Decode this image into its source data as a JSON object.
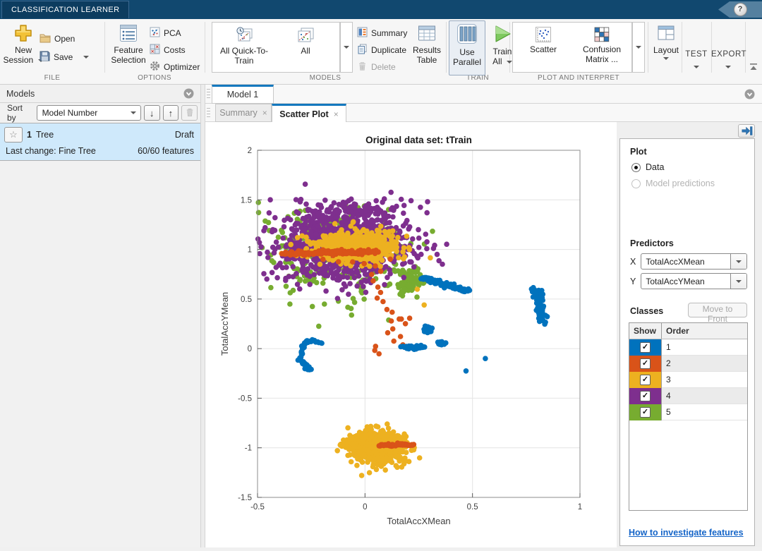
{
  "app": {
    "title_tab": "CLASSIFICATION LEARNER",
    "help_glyph": "?"
  },
  "ribbon": {
    "group_labels": {
      "file": "FILE",
      "options": "OPTIONS",
      "models": "MODELS",
      "train": "TRAIN",
      "plot": "PLOT AND INTERPRET"
    },
    "file": {
      "new_session": "New Session",
      "open": "Open",
      "save": "Save"
    },
    "options": {
      "feature_selection": "Feature Selection",
      "pca": "PCA",
      "costs": "Costs",
      "optimizer": "Optimizer"
    },
    "models": {
      "quick_train": "All Quick-To-Train",
      "all": "All",
      "summary": "Summary",
      "duplicate": "Duplicate",
      "delete": "Delete",
      "results_table": "Results Table"
    },
    "train": {
      "use_parallel": "Use Parallel",
      "train_all": "Train All"
    },
    "plot": {
      "scatter": "Scatter",
      "confusion": "Confusion Matrix",
      "ellipsis": "...",
      "layout": "Layout"
    },
    "test": "TEST",
    "export": "EXPORT"
  },
  "models_panel": {
    "title": "Models",
    "sort_label": "Sort by",
    "sort_value": "Model Number",
    "sort_desc_glyph": "↓",
    "sort_asc_glyph": "↑",
    "model": {
      "number": "1",
      "name": "Tree",
      "status": "Draft",
      "last_change": "Last change: Fine Tree",
      "features": "60/60 features",
      "star_glyph": "☆"
    }
  },
  "doc": {
    "model_tab": "Model 1",
    "tabs": [
      {
        "label": "Summary",
        "close": "×"
      },
      {
        "label": "Scatter Plot",
        "close": "×"
      }
    ]
  },
  "controls": {
    "plot_heading": "Plot",
    "radio_data": "Data",
    "radio_model": "Model predictions",
    "predictors_heading": "Predictors",
    "x_label": "X",
    "x_value": "TotalAccXMean",
    "y_label": "Y",
    "y_value": "TotalAccYMean",
    "classes_heading": "Classes",
    "move_to_front": "Move to Front",
    "col_show": "Show",
    "col_order": "Order",
    "check_glyph": "✓",
    "classes": [
      {
        "order": "1",
        "color": "#0072BD",
        "shown": true
      },
      {
        "order": "2",
        "color": "#D95319",
        "shown": true
      },
      {
        "order": "3",
        "color": "#EDB120",
        "shown": true
      },
      {
        "order": "4",
        "color": "#7E2F8E",
        "shown": true
      },
      {
        "order": "5",
        "color": "#77AC30",
        "shown": true
      }
    ],
    "link": "How to investigate features"
  },
  "chart_data": {
    "type": "scatter",
    "title": "Original data set: tTrain",
    "xlabel": "TotalAccXMean",
    "ylabel": "TotalAccYMean",
    "xlim": [
      -0.5,
      1
    ],
    "ylim": [
      -1.5,
      2
    ],
    "xticks": [
      -0.5,
      0,
      0.5,
      1
    ],
    "yticks": [
      -1.5,
      -1,
      -0.5,
      0,
      0.5,
      1,
      1.5,
      2
    ],
    "grid": true,
    "marker_radius": 3.8,
    "legend_position": "none",
    "class_colors": {
      "1": "#0072BD",
      "2": "#D95319",
      "3": "#EDB120",
      "4": "#7E2F8E",
      "5": "#77AC30"
    },
    "clusters": [
      {
        "kind": "gauss",
        "cls": "5",
        "cx": -0.13,
        "cy": 0.97,
        "sx": 0.16,
        "sy": 0.21,
        "n": 330,
        "seed": 11
      },
      {
        "kind": "gauss",
        "cls": "5",
        "cx": 0.2,
        "cy": 0.7,
        "sx": 0.035,
        "sy": 0.075,
        "n": 70,
        "seed": 12
      },
      {
        "kind": "points",
        "cls": "5",
        "pts": [
          [
            0.255,
            0.685
          ],
          [
            0.27,
            0.66
          ],
          [
            0.235,
            0.715
          ],
          [
            -0.05,
            0.47
          ],
          [
            0.0,
            0.5
          ]
        ],
        "rep": 1,
        "jitter": 0.004,
        "seed": 13
      },
      {
        "kind": "gauss",
        "cls": "4",
        "cx": -0.1,
        "cy": 1.05,
        "sx": 0.15,
        "sy": 0.165,
        "n": 1050,
        "seed": 21
      },
      {
        "kind": "gauss",
        "cls": "4",
        "cx": -0.07,
        "cy": 1.4,
        "sx": 0.12,
        "sy": 0.065,
        "n": 110,
        "seed": 22
      },
      {
        "kind": "points",
        "cls": "4",
        "pts": [
          [
            -0.28,
            1.66
          ],
          [
            0.12,
            1.57
          ],
          [
            -0.33,
            1.5
          ],
          [
            0.05,
            1.5
          ],
          [
            -0.44,
            0.77
          ],
          [
            -0.46,
            0.7
          ]
        ],
        "rep": 1,
        "jitter": 0.005,
        "seed": 23
      },
      {
        "kind": "gauss",
        "cls": "3",
        "cx": -0.05,
        "cy": 1.03,
        "sx": 0.095,
        "sy": 0.075,
        "n": 620,
        "seed": 31
      },
      {
        "kind": "gauss",
        "cls": "3",
        "cx": 0.065,
        "cy": -0.99,
        "sx": 0.06,
        "sy": 0.085,
        "n": 650,
        "seed": 32
      },
      {
        "kind": "gauss",
        "cls": "3",
        "cx": -0.045,
        "cy": -0.96,
        "sx": 0.035,
        "sy": 0.035,
        "n": 140,
        "seed": 33
      },
      {
        "kind": "points",
        "cls": "3",
        "pts": [
          [
            0.24,
            0.6
          ],
          [
            0.275,
            0.44
          ],
          [
            0.305,
            0.92
          ],
          [
            0.02,
            -1.25
          ],
          [
            -0.005,
            -1.28
          ],
          [
            0.05,
            -1.23
          ],
          [
            0.1,
            -1.22
          ]
        ],
        "rep": 1,
        "jitter": 0.005,
        "seed": 34
      },
      {
        "kind": "streak",
        "cls": "2",
        "x1": -0.38,
        "y1": 0.955,
        "x2": 0.05,
        "y2": 0.98,
        "w": 0.013,
        "n": 160,
        "seed": 41
      },
      {
        "kind": "points",
        "cls": "2",
        "pts": [
          [
            -0.05,
            0.88
          ],
          [
            0.0,
            0.86
          ],
          [
            0.06,
            0.83
          ],
          [
            -0.12,
            0.88
          ],
          [
            0.08,
            0.78
          ],
          [
            0.02,
            0.74
          ],
          [
            -0.2,
            0.9
          ],
          [
            0.11,
            0.9
          ]
        ],
        "rep": 1,
        "jitter": 0.006,
        "seed": 42
      },
      {
        "kind": "points",
        "cls": "2",
        "pts": [
          [
            0.04,
            0.68
          ],
          [
            0.06,
            0.62
          ],
          [
            0.07,
            0.565
          ],
          [
            0.05,
            0.51
          ],
          [
            0.085,
            0.47
          ],
          [
            0.1,
            0.4
          ],
          [
            0.13,
            0.37
          ],
          [
            0.155,
            0.3
          ],
          [
            0.12,
            0.275
          ],
          [
            0.185,
            0.25
          ],
          [
            0.14,
            0.2
          ],
          [
            0.105,
            0.16
          ],
          [
            0.165,
            0.12
          ],
          [
            0.13,
            0.07
          ],
          [
            0.175,
            0.04
          ],
          [
            0.05,
            0.02
          ],
          [
            0.04,
            -0.02
          ],
          [
            0.065,
            -0.05
          ],
          [
            0.205,
            0.3
          ],
          [
            0.17,
            0.3
          ]
        ],
        "rep": 1,
        "jitter": 0.003,
        "seed": 43
      },
      {
        "kind": "streak",
        "cls": "2",
        "x1": 0.075,
        "y1": -0.975,
        "x2": 0.135,
        "y2": -0.975,
        "w": 0.007,
        "n": 26,
        "seed": 44
      },
      {
        "kind": "streak",
        "cls": "2",
        "x1": 0.15,
        "y1": -0.965,
        "x2": 0.225,
        "y2": -0.97,
        "w": 0.007,
        "n": 30,
        "seed": 45
      },
      {
        "kind": "streak",
        "cls": "1",
        "x1": 0.265,
        "y1": 0.715,
        "x2": 0.4,
        "y2": 0.63,
        "w": 0.011,
        "n": 95,
        "seed": 51
      },
      {
        "kind": "streak",
        "cls": "1",
        "x1": 0.405,
        "y1": 0.625,
        "x2": 0.475,
        "y2": 0.578,
        "w": 0.009,
        "n": 50,
        "seed": 52
      },
      {
        "kind": "streak",
        "cls": "1",
        "x1": 0.8,
        "y1": 0.585,
        "x2": 0.825,
        "y2": 0.26,
        "w": 0.012,
        "n": 65,
        "seed": 53
      },
      {
        "kind": "points",
        "cls": "1",
        "pts": [
          [
            0.785,
            0.615
          ],
          [
            0.79,
            0.598
          ],
          [
            0.8,
            0.56
          ]
        ],
        "rep": 2,
        "jitter": 0.006,
        "seed": 54
      },
      {
        "kind": "points",
        "cls": "1",
        "pts": [
          [
            -0.295,
            0.03
          ],
          [
            -0.285,
            0.055
          ],
          [
            -0.27,
            0.07
          ],
          [
            -0.255,
            0.08
          ],
          [
            -0.24,
            0.082
          ],
          [
            -0.225,
            0.072
          ],
          [
            -0.21,
            0.058
          ],
          [
            -0.29,
            0.0
          ],
          [
            -0.296,
            -0.03
          ],
          [
            -0.3,
            -0.06
          ],
          [
            -0.3,
            -0.09
          ],
          [
            -0.295,
            -0.12
          ],
          [
            -0.285,
            -0.15
          ],
          [
            -0.275,
            -0.175
          ],
          [
            -0.262,
            -0.196
          ],
          [
            -0.252,
            -0.208
          ]
        ],
        "rep": 3,
        "jitter": 0.007,
        "seed": 55
      },
      {
        "kind": "gauss",
        "cls": "1",
        "cx": 0.225,
        "cy": 0.015,
        "sx": 0.024,
        "sy": 0.009,
        "n": 45,
        "seed": 56
      },
      {
        "kind": "gauss",
        "cls": "1",
        "cx": 0.29,
        "cy": 0.19,
        "sx": 0.012,
        "sy": 0.022,
        "n": 32,
        "seed": 57
      },
      {
        "kind": "gauss",
        "cls": "1",
        "cx": 0.365,
        "cy": 0.055,
        "sx": 0.011,
        "sy": 0.009,
        "n": 16,
        "seed": 58
      },
      {
        "kind": "points",
        "cls": "1",
        "pts": [
          [
            0.56,
            -0.1
          ],
          [
            0.47,
            -0.225
          ]
        ],
        "rep": 1,
        "jitter": 0,
        "seed": 59
      }
    ]
  }
}
